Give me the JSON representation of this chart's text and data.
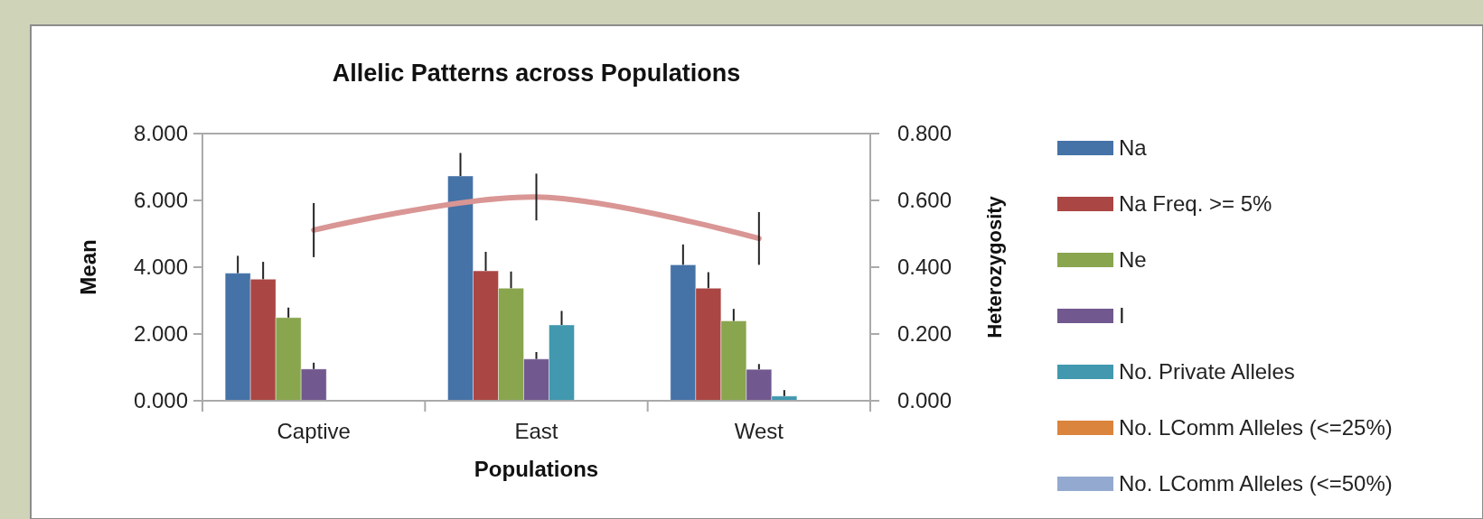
{
  "chart_data": {
    "type": "bar",
    "title": "Allelic Patterns across Populations",
    "xlabel": "Populations",
    "ylabel": "Mean",
    "y2label": "Heterozygosity",
    "categories": [
      "Captive",
      "East",
      "West"
    ],
    "series": [
      {
        "name": "Na",
        "color": "#4572a7",
        "values": [
          3.82,
          6.73,
          4.07
        ],
        "errors": [
          0.52,
          0.69,
          0.61
        ]
      },
      {
        "name": "Na Freq. >= 5%",
        "color": "#aa4643",
        "values": [
          3.64,
          3.89,
          3.37
        ],
        "errors": [
          0.52,
          0.57,
          0.48
        ]
      },
      {
        "name": "Ne",
        "color": "#89a54e",
        "values": [
          2.49,
          3.37,
          2.39
        ],
        "errors": [
          0.3,
          0.5,
          0.36
        ]
      },
      {
        "name": "I",
        "color": "#71588f",
        "values": [
          0.95,
          1.25,
          0.94
        ],
        "errors": [
          0.19,
          0.21,
          0.16
        ]
      },
      {
        "name": "No. Private Alleles",
        "color": "#4198af",
        "values": [
          null,
          2.27,
          0.14
        ],
        "errors": [
          null,
          0.42,
          0.18
        ]
      },
      {
        "name": "No. LComm Alleles (<=25%)",
        "color": "#db843d",
        "values": [
          null,
          null,
          null
        ]
      },
      {
        "name": "No. LComm Alleles (<=50%)",
        "color": "#93a9cf",
        "values": [
          null,
          null,
          null
        ]
      },
      {
        "type": "line",
        "axis": "y2",
        "color": "#d99694",
        "values": [
          0.511,
          0.61,
          0.486
        ],
        "errors": [
          0.081,
          0.07,
          0.079
        ]
      }
    ],
    "ylim": [
      0,
      8
    ],
    "yticks": [
      {
        "value": 0,
        "label": "0.000"
      },
      {
        "value": 2,
        "label": "2.000"
      },
      {
        "value": 4,
        "label": "4.000"
      },
      {
        "value": 6,
        "label": "6.000"
      },
      {
        "value": 8,
        "label": "8.000"
      }
    ],
    "y2lim": [
      0,
      0.8
    ],
    "y2ticks": [
      {
        "value": 0,
        "label": "0.000"
      },
      {
        "value": 0.2,
        "label": "0.200"
      },
      {
        "value": 0.4,
        "label": "0.400"
      },
      {
        "value": 0.6,
        "label": "0.600"
      },
      {
        "value": 0.8,
        "label": "0.800"
      }
    ],
    "legend": "right",
    "grid": false
  }
}
